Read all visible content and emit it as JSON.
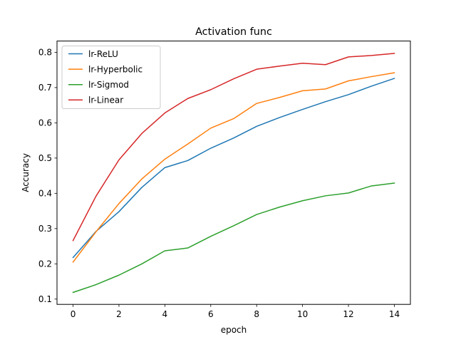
{
  "chart_data": {
    "type": "line",
    "title": "Activation func",
    "xlabel": "epoch",
    "ylabel": "Accuracy",
    "xlim": [
      -0.7,
      14.7
    ],
    "ylim": [
      0.085,
      0.832
    ],
    "xticks": [
      0,
      2,
      4,
      6,
      8,
      10,
      12,
      14
    ],
    "yticks": [
      0.1,
      0.2,
      0.3,
      0.4,
      0.5,
      0.6,
      0.7,
      0.8
    ],
    "grid": false,
    "legend_position": "top-left",
    "x": [
      0,
      1,
      2,
      3,
      4,
      5,
      6,
      7,
      8,
      9,
      10,
      11,
      12,
      13,
      14
    ],
    "series": [
      {
        "name": "lr-ReLU",
        "color": "#1f77b4",
        "values": [
          0.218,
          0.292,
          0.348,
          0.417,
          0.473,
          0.493,
          0.528,
          0.557,
          0.59,
          0.615,
          0.638,
          0.66,
          0.68,
          0.704,
          0.726
        ]
      },
      {
        "name": "lr-Hyperbolic",
        "color": "#ff7f0e",
        "values": [
          0.205,
          0.291,
          0.371,
          0.441,
          0.497,
          0.54,
          0.585,
          0.612,
          0.655,
          0.672,
          0.691,
          0.696,
          0.719,
          0.731,
          0.742
        ]
      },
      {
        "name": "lr-Sigmod",
        "color": "#2ca02c",
        "values": [
          0.119,
          0.141,
          0.168,
          0.2,
          0.237,
          0.245,
          0.278,
          0.308,
          0.34,
          0.361,
          0.379,
          0.393,
          0.401,
          0.421,
          0.429
        ]
      },
      {
        "name": "lr-Linear",
        "color": "#d62728",
        "values": [
          0.266,
          0.392,
          0.495,
          0.57,
          0.628,
          0.669,
          0.694,
          0.725,
          0.752,
          0.761,
          0.769,
          0.765,
          0.787,
          0.791,
          0.797
        ]
      }
    ]
  }
}
